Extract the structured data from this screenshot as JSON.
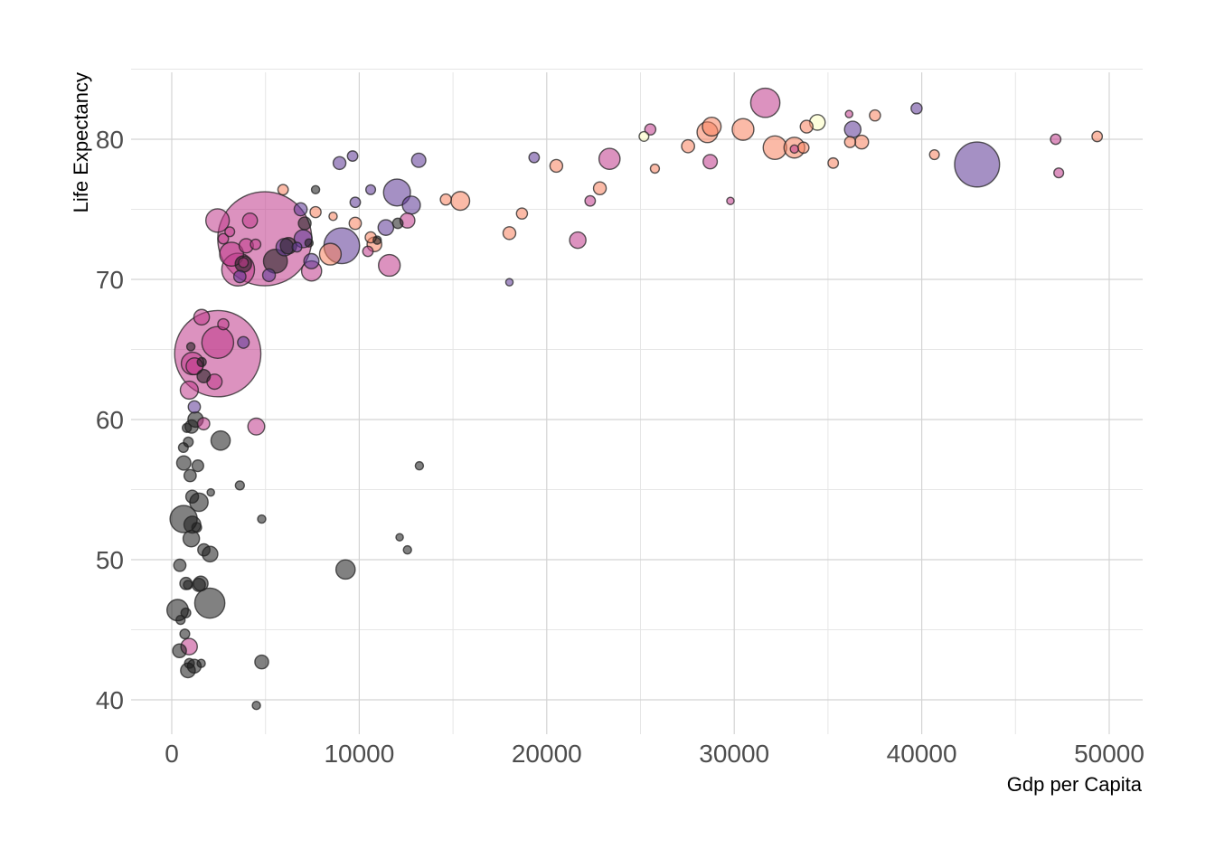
{
  "chart_data": {
    "type": "scatter",
    "subtype": "bubble",
    "title": "",
    "xlabel": "Gdp per Capita",
    "ylabel": "Life Expectancy",
    "xlim": [
      -2000,
      52000
    ],
    "ylim": [
      38,
      85
    ],
    "xticks": [
      0,
      10000,
      20000,
      30000,
      40000,
      50000
    ],
    "xtick_labels": [
      "0",
      "10000",
      "20000",
      "30000",
      "40000",
      "50000"
    ],
    "yticks": [
      40,
      50,
      60,
      70,
      80
    ],
    "ytick_labels": [
      "40",
      "50",
      "60",
      "70",
      "80"
    ],
    "grid": true,
    "legend": "none",
    "colors": {
      "black": "#1a1a1a",
      "purple": "#5b3593",
      "magenta": "#b5367a",
      "pink": "#c0398a",
      "orange": "#f8825e",
      "cream": "#fcfdbf"
    },
    "points": [
      {
        "x": 4959,
        "y": 72.9,
        "size": 1319,
        "color": "pink"
      },
      {
        "x": 2452,
        "y": 64.7,
        "size": 1110,
        "color": "pink"
      },
      {
        "x": 42952,
        "y": 78.2,
        "size": 301,
        "color": "purple"
      },
      {
        "x": 9066,
        "y": 72.4,
        "size": 190,
        "color": "purple"
      },
      {
        "x": 31656,
        "y": 82.6,
        "size": 127,
        "color": "pink"
      },
      {
        "x": 2452,
        "y": 65.5,
        "size": 150,
        "color": "pink"
      },
      {
        "x": 3540,
        "y": 70.7,
        "size": 160,
        "color": "pink"
      },
      {
        "x": 2028,
        "y": 46.9,
        "size": 135,
        "color": "black"
      },
      {
        "x": 12013,
        "y": 76.2,
        "size": 108,
        "color": "purple"
      },
      {
        "x": 633,
        "y": 52.9,
        "size": 110,
        "color": "black"
      },
      {
        "x": 5529,
        "y": 71.3,
        "size": 85,
        "color": "black"
      },
      {
        "x": 3190,
        "y": 71.8,
        "size": 85,
        "color": "pink"
      },
      {
        "x": 2442,
        "y": 74.2,
        "size": 82,
        "color": "pink"
      },
      {
        "x": 32170,
        "y": 79.4,
        "size": 82,
        "color": "orange"
      },
      {
        "x": 30470,
        "y": 80.7,
        "size": 70,
        "color": "orange"
      },
      {
        "x": 28570,
        "y": 80.5,
        "size": 64,
        "color": "orange"
      },
      {
        "x": 33207,
        "y": 79.4,
        "size": 64,
        "color": "orange"
      },
      {
        "x": 1107,
        "y": 64.0,
        "size": 75,
        "color": "pink"
      },
      {
        "x": 8458,
        "y": 71.8,
        "size": 70,
        "color": "orange"
      },
      {
        "x": 11605,
        "y": 71.0,
        "size": 70,
        "color": "pink"
      },
      {
        "x": 23348,
        "y": 78.6,
        "size": 66,
        "color": "pink"
      },
      {
        "x": 7458,
        "y": 70.6,
        "size": 60,
        "color": "pink"
      },
      {
        "x": 313,
        "y": 46.4,
        "size": 68,
        "color": "black"
      },
      {
        "x": 9269,
        "y": 49.3,
        "size": 55,
        "color": "black"
      },
      {
        "x": 2606,
        "y": 58.5,
        "size": 55,
        "color": "black"
      },
      {
        "x": 15390,
        "y": 75.6,
        "size": 52,
        "color": "orange"
      },
      {
        "x": 28800,
        "y": 80.9,
        "size": 52,
        "color": "orange"
      },
      {
        "x": 1450,
        "y": 54.1,
        "size": 50,
        "color": "black"
      },
      {
        "x": 12779,
        "y": 75.3,
        "size": 48,
        "color": "purple"
      },
      {
        "x": 6026,
        "y": 72.3,
        "size": 45,
        "color": "purple"
      },
      {
        "x": 935,
        "y": 62.1,
        "size": 48,
        "color": "pink"
      },
      {
        "x": 4508,
        "y": 59.5,
        "size": 42,
        "color": "pink"
      },
      {
        "x": 1100,
        "y": 52.5,
        "size": 42,
        "color": "black"
      },
      {
        "x": 1041,
        "y": 51.5,
        "size": 40,
        "color": "black"
      },
      {
        "x": 2042,
        "y": 50.4,
        "size": 36,
        "color": "black"
      },
      {
        "x": 7008,
        "y": 72.9,
        "size": 48,
        "color": "purple"
      },
      {
        "x": 21655,
        "y": 72.8,
        "size": 40,
        "color": "pink"
      },
      {
        "x": 36319,
        "y": 80.7,
        "size": 40,
        "color": "purple"
      },
      {
        "x": 34435,
        "y": 81.2,
        "size": 36,
        "color": "cream"
      },
      {
        "x": 13172,
        "y": 78.5,
        "size": 30,
        "color": "purple"
      },
      {
        "x": 11420,
        "y": 73.7,
        "size": 36,
        "color": "purple"
      },
      {
        "x": 1593,
        "y": 67.3,
        "size": 36,
        "color": "pink"
      },
      {
        "x": 1214,
        "y": 63.8,
        "size": 42,
        "color": "pink"
      },
      {
        "x": 926,
        "y": 43.8,
        "size": 40,
        "color": "pink"
      },
      {
        "x": 2280,
        "y": 62.7,
        "size": 34,
        "color": "pink"
      },
      {
        "x": 1270,
        "y": 60.0,
        "size": 35,
        "color": "black"
      },
      {
        "x": 1544,
        "y": 48.3,
        "size": 32,
        "color": "black"
      },
      {
        "x": 641,
        "y": 56.9,
        "size": 30,
        "color": "black"
      },
      {
        "x": 4797,
        "y": 42.7,
        "size": 28,
        "color": "black"
      },
      {
        "x": 863,
        "y": 42.1,
        "size": 32,
        "color": "black"
      },
      {
        "x": 1200,
        "y": 42.4,
        "size": 28,
        "color": "black"
      },
      {
        "x": 415,
        "y": 43.5,
        "size": 28,
        "color": "black"
      },
      {
        "x": 4173,
        "y": 74.2,
        "size": 33,
        "color": "pink"
      },
      {
        "x": 12570,
        "y": 74.2,
        "size": 33,
        "color": "pink"
      },
      {
        "x": 6223,
        "y": 72.4,
        "size": 40,
        "color": "black"
      },
      {
        "x": 7449,
        "y": 71.3,
        "size": 34,
        "color": "purple"
      },
      {
        "x": 3820,
        "y": 71.1,
        "size": 40,
        "color": "black"
      },
      {
        "x": 3970,
        "y": 72.4,
        "size": 30,
        "color": "pink"
      },
      {
        "x": 10808,
        "y": 72.5,
        "size": 32,
        "color": "orange"
      },
      {
        "x": 36797,
        "y": 79.8,
        "size": 28,
        "color": "orange"
      },
      {
        "x": 27538,
        "y": 79.5,
        "size": 25,
        "color": "orange"
      },
      {
        "x": 33860,
        "y": 80.9,
        "size": 24,
        "color": "orange"
      },
      {
        "x": 28718,
        "y": 78.4,
        "size": 30,
        "color": "pink"
      },
      {
        "x": 8948,
        "y": 78.3,
        "size": 24,
        "color": "purple"
      },
      {
        "x": 6874,
        "y": 75.0,
        "size": 25,
        "color": "purple"
      },
      {
        "x": 22833,
        "y": 76.5,
        "size": 24,
        "color": "orange"
      },
      {
        "x": 20510,
        "y": 78.1,
        "size": 24,
        "color": "orange"
      },
      {
        "x": 18008,
        "y": 73.3,
        "size": 24,
        "color": "orange"
      },
      {
        "x": 9786,
        "y": 74.0,
        "size": 22,
        "color": "orange"
      },
      {
        "x": 5186,
        "y": 70.3,
        "size": 24,
        "color": "purple"
      },
      {
        "x": 3632,
        "y": 70.2,
        "size": 22,
        "color": "purple"
      },
      {
        "x": 7092,
        "y": 74.0,
        "size": 24,
        "color": "black"
      },
      {
        "x": 1704,
        "y": 63.1,
        "size": 26,
        "color": "black"
      },
      {
        "x": 1441,
        "y": 48.2,
        "size": 26,
        "color": "black"
      },
      {
        "x": 1059,
        "y": 59.5,
        "size": 26,
        "color": "black"
      },
      {
        "x": 980,
        "y": 56.0,
        "size": 22,
        "color": "black"
      },
      {
        "x": 1391,
        "y": 56.7,
        "size": 20,
        "color": "black"
      },
      {
        "x": 1713,
        "y": 50.7,
        "size": 22,
        "color": "black"
      },
      {
        "x": 430,
        "y": 49.6,
        "size": 22,
        "color": "black"
      },
      {
        "x": 1089,
        "y": 54.5,
        "size": 24,
        "color": "black"
      },
      {
        "x": 759,
        "y": 48.3,
        "size": 22,
        "color": "black"
      },
      {
        "x": 2749,
        "y": 66.8,
        "size": 18,
        "color": "pink"
      },
      {
        "x": 3820,
        "y": 65.5,
        "size": 20,
        "color": "purple"
      },
      {
        "x": 1700,
        "y": 59.7,
        "size": 22,
        "color": "pink"
      },
      {
        "x": 1203,
        "y": 60.9,
        "size": 22,
        "color": "purple"
      },
      {
        "x": 7670,
        "y": 74.8,
        "size": 18,
        "color": "orange"
      },
      {
        "x": 5937,
        "y": 76.4,
        "size": 16,
        "color": "orange"
      },
      {
        "x": 25523,
        "y": 80.7,
        "size": 18,
        "color": "pink"
      },
      {
        "x": 19328,
        "y": 78.7,
        "size": 16,
        "color": "purple"
      },
      {
        "x": 22316,
        "y": 75.6,
        "size": 16,
        "color": "pink"
      },
      {
        "x": 18678,
        "y": 74.7,
        "size": 18,
        "color": "orange"
      },
      {
        "x": 14619,
        "y": 75.7,
        "size": 18,
        "color": "orange"
      },
      {
        "x": 9645,
        "y": 78.8,
        "size": 16,
        "color": "purple"
      },
      {
        "x": 9787,
        "y": 75.5,
        "size": 16,
        "color": "purple"
      },
      {
        "x": 10611,
        "y": 73.0,
        "size": 18,
        "color": "orange"
      },
      {
        "x": 10462,
        "y": 72.0,
        "size": 16,
        "color": "pink"
      },
      {
        "x": 10610,
        "y": 76.4,
        "size": 14,
        "color": "purple"
      },
      {
        "x": 12057,
        "y": 74.0,
        "size": 16,
        "color": "black"
      },
      {
        "x": 3095,
        "y": 73.4,
        "size": 14,
        "color": "pink"
      },
      {
        "x": 2749,
        "y": 72.9,
        "size": 16,
        "color": "pink"
      },
      {
        "x": 4471,
        "y": 72.5,
        "size": 16,
        "color": "pink"
      },
      {
        "x": 6677,
        "y": 72.3,
        "size": 14,
        "color": "purple"
      },
      {
        "x": 3822,
        "y": 71.2,
        "size": 14,
        "color": "pink"
      },
      {
        "x": 8605,
        "y": 74.5,
        "size": 10,
        "color": "orange"
      },
      {
        "x": 7670,
        "y": 76.4,
        "size": 10,
        "color": "black"
      },
      {
        "x": 10957,
        "y": 72.8,
        "size": 10,
        "color": "black"
      },
      {
        "x": 35278,
        "y": 78.3,
        "size": 16,
        "color": "orange"
      },
      {
        "x": 36181,
        "y": 79.8,
        "size": 18,
        "color": "orange"
      },
      {
        "x": 37506,
        "y": 81.7,
        "size": 18,
        "color": "orange"
      },
      {
        "x": 39725,
        "y": 82.2,
        "size": 18,
        "color": "purple"
      },
      {
        "x": 40676,
        "y": 78.9,
        "size": 14,
        "color": "orange"
      },
      {
        "x": 47143,
        "y": 80.0,
        "size": 16,
        "color": "pink"
      },
      {
        "x": 47307,
        "y": 77.6,
        "size": 14,
        "color": "pink"
      },
      {
        "x": 49357,
        "y": 80.2,
        "size": 16,
        "color": "orange"
      },
      {
        "x": 33692,
        "y": 79.4,
        "size": 18,
        "color": "orange"
      },
      {
        "x": 33207,
        "y": 79.3,
        "size": 10,
        "color": "pink"
      },
      {
        "x": 25185,
        "y": 80.2,
        "size": 14,
        "color": "cream"
      },
      {
        "x": 25768,
        "y": 77.9,
        "size": 12,
        "color": "orange"
      },
      {
        "x": 36126,
        "y": 81.8,
        "size": 8,
        "color": "pink"
      },
      {
        "x": 29796,
        "y": 75.6,
        "size": 8,
        "color": "pink"
      },
      {
        "x": 18009,
        "y": 69.8,
        "size": 8,
        "color": "purple"
      },
      {
        "x": 13206,
        "y": 56.7,
        "size": 10,
        "color": "black"
      },
      {
        "x": 12570,
        "y": 50.7,
        "size": 10,
        "color": "black"
      },
      {
        "x": 12154,
        "y": 51.6,
        "size": 8,
        "color": "black"
      },
      {
        "x": 4797,
        "y": 52.9,
        "size": 10,
        "color": "black"
      },
      {
        "x": 3632,
        "y": 55.3,
        "size": 12,
        "color": "black"
      },
      {
        "x": 2082,
        "y": 54.8,
        "size": 8,
        "color": "black"
      },
      {
        "x": 4513,
        "y": 39.6,
        "size": 10,
        "color": "black"
      },
      {
        "x": 883,
        "y": 58.4,
        "size": 14,
        "color": "black"
      },
      {
        "x": 620,
        "y": 58.0,
        "size": 14,
        "color": "black"
      },
      {
        "x": 804,
        "y": 59.4,
        "size": 12,
        "color": "black"
      },
      {
        "x": 752,
        "y": 46.2,
        "size": 14,
        "color": "black"
      },
      {
        "x": 470,
        "y": 45.7,
        "size": 12,
        "color": "black"
      },
      {
        "x": 697,
        "y": 44.7,
        "size": 14,
        "color": "black"
      },
      {
        "x": 943,
        "y": 42.6,
        "size": 14,
        "color": "black"
      },
      {
        "x": 1569,
        "y": 42.6,
        "size": 10,
        "color": "black"
      },
      {
        "x": 863,
        "y": 48.2,
        "size": 12,
        "color": "black"
      },
      {
        "x": 1598,
        "y": 64.1,
        "size": 12,
        "color": "black"
      },
      {
        "x": 1018,
        "y": 65.2,
        "size": 10,
        "color": "black"
      },
      {
        "x": 1330,
        "y": 52.3,
        "size": 14,
        "color": "black"
      },
      {
        "x": 7320,
        "y": 72.6,
        "size": 10,
        "color": "black"
      }
    ]
  }
}
